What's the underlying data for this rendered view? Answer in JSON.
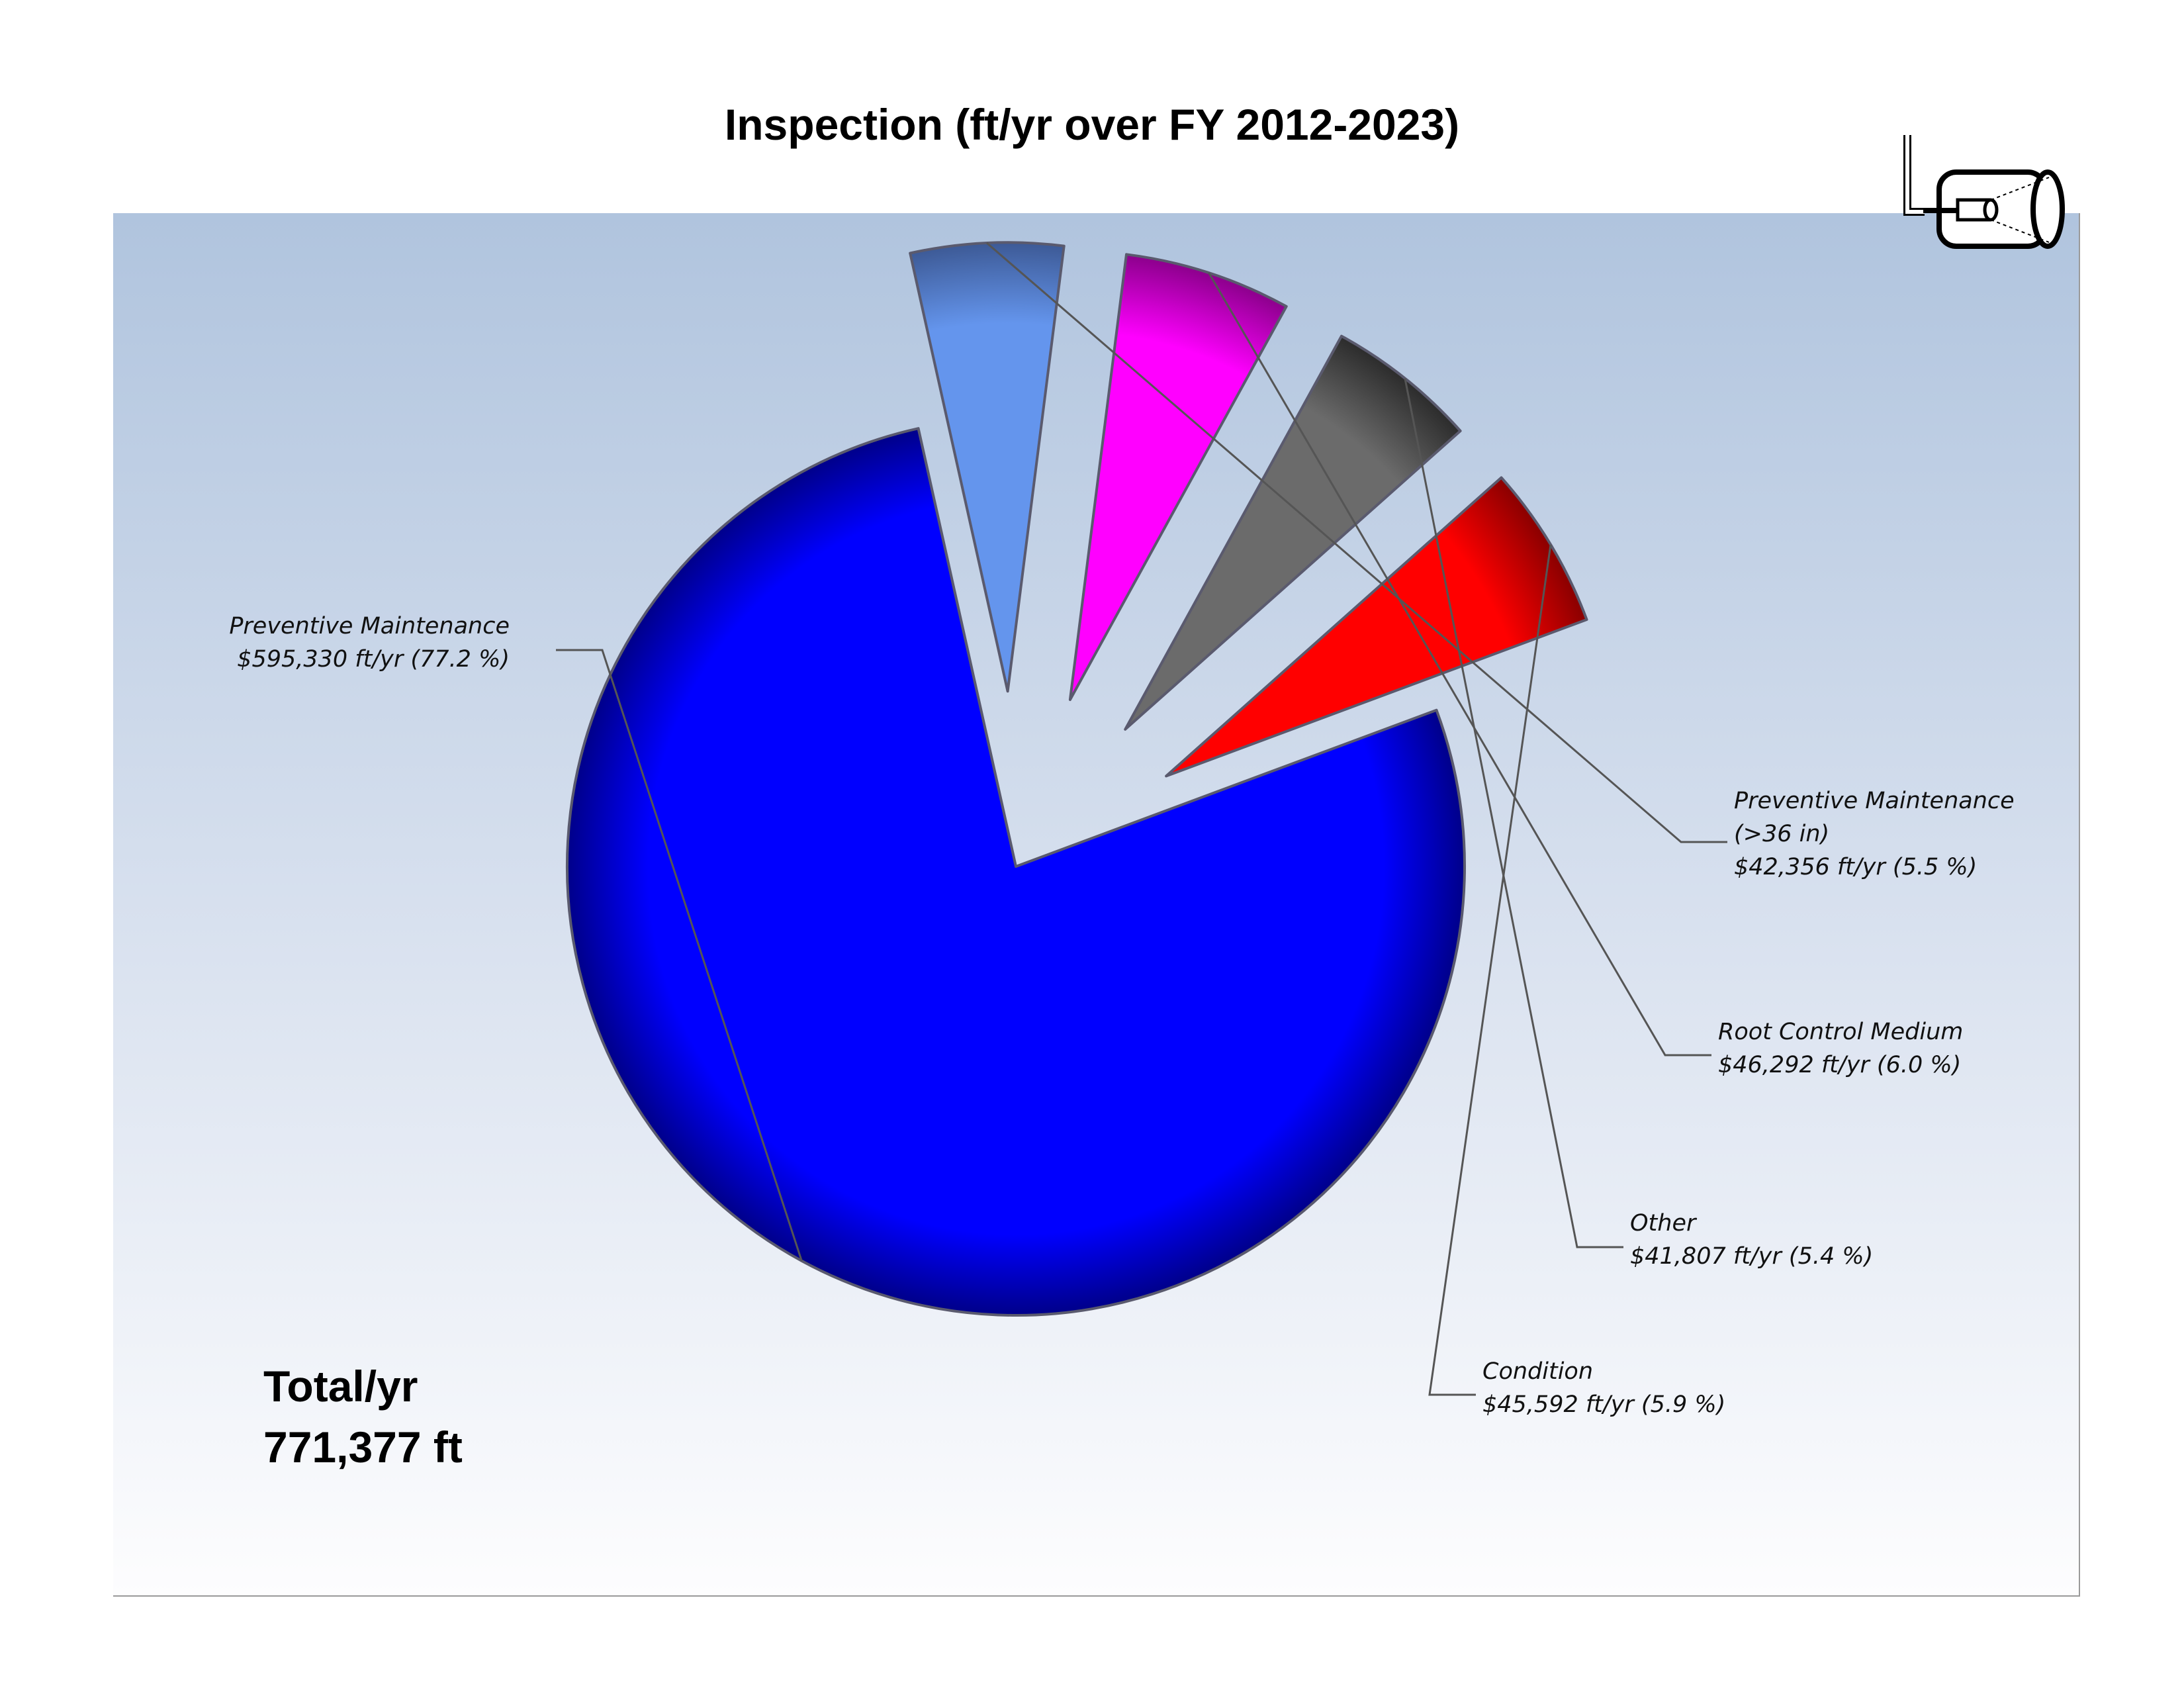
{
  "title": "Inspection (ft/yr over FY 2012-2023)",
  "total": {
    "label": "Total/yr",
    "value": "771,377 ft"
  },
  "icon": "pipe-inspection-camera-icon",
  "chart_data": {
    "type": "pie",
    "exploded": true,
    "title": "Inspection (ft/yr over FY 2012-2023)",
    "slices": [
      {
        "name": "Preventive Maintenance",
        "value": 595330,
        "percent": 77.2,
        "value_label": "$595,330 ft/yr (77.2 %)",
        "color": "#0000ff",
        "dark": "#00008a"
      },
      {
        "name": "Preventive Maintenance (>36 in)",
        "name_lines": [
          "Preventive Maintenance",
          "(>36 in)"
        ],
        "value": 42356,
        "percent": 5.5,
        "value_label": "$42,356 ft/yr (5.5 %)",
        "color": "#6495ed",
        "dark": "#3d5a96"
      },
      {
        "name": "Root Control Medium",
        "value": 46292,
        "percent": 6.0,
        "value_label": "$46,292 ft/yr (6.0 %)",
        "color": "#ff00ff",
        "dark": "#8c008c"
      },
      {
        "name": "Other",
        "value": 41807,
        "percent": 5.4,
        "value_label": "$41,807 ft/yr (5.4 %)",
        "color": "#6b6b6b",
        "dark": "#2c2c2c"
      },
      {
        "name": "Condition",
        "value": 45592,
        "percent": 5.9,
        "value_label": "$45,592 ft/yr (5.9 %)",
        "color": "#ff0000",
        "dark": "#8a0000"
      }
    ]
  }
}
